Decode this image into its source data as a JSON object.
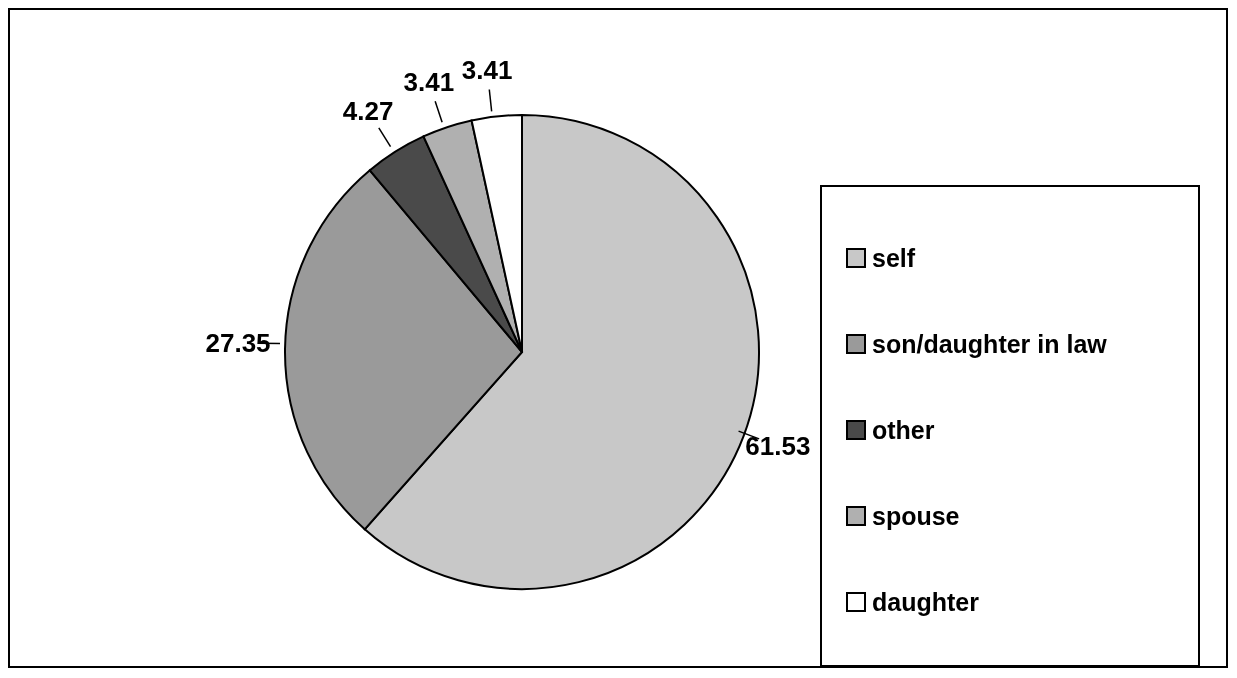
{
  "chart_data": {
    "type": "pie",
    "categories": [
      "self",
      "son/daughter in law",
      "other",
      "spouse",
      "daughter"
    ],
    "values": [
      61.53,
      27.35,
      4.27,
      3.41,
      3.41
    ],
    "colors": [
      "#c8c8c8",
      "#9a9a9a",
      "#4a4a4a",
      "#b0b0b0",
      "#ffffff"
    ],
    "data_labels": true,
    "legend": "right"
  }
}
